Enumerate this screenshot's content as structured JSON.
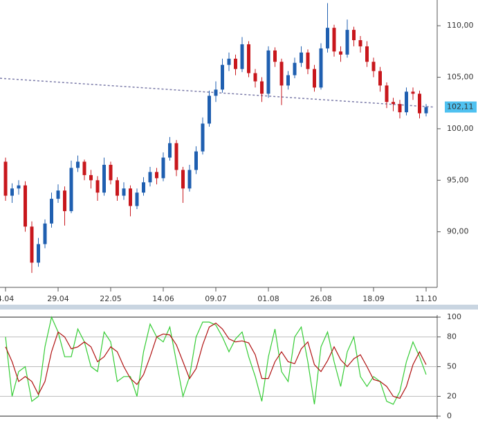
{
  "chart_data": [
    {
      "type": "candlestick",
      "categories": [
        "4.04",
        null,
        null,
        null,
        null,
        null,
        null,
        null,
        "29.04",
        null,
        null,
        null,
        null,
        null,
        null,
        null,
        "22.05",
        null,
        null,
        null,
        null,
        null,
        null,
        null,
        "14.06",
        null,
        null,
        null,
        null,
        null,
        null,
        null,
        "09.07",
        null,
        null,
        null,
        null,
        null,
        null,
        null,
        "01.08",
        null,
        null,
        null,
        null,
        null,
        null,
        null,
        "26.08",
        null,
        null,
        null,
        null,
        null,
        null,
        null,
        "18.09",
        null,
        null,
        null,
        null,
        null,
        null,
        null,
        "11.10"
      ],
      "open": [
        96.8,
        93.5,
        94.2,
        94.5,
        90.5,
        87.0,
        88.8,
        90.8,
        93.2,
        94.0,
        92.0,
        96.2,
        96.8,
        95.5,
        95.0,
        93.8,
        96.5,
        95.0,
        93.5,
        94.2,
        92.5,
        93.8,
        94.8,
        95.8,
        95.2,
        97.2,
        98.6,
        96.0,
        94.2,
        96.0,
        97.8,
        100.5,
        103.2,
        103.8,
        106.2,
        106.8,
        105.8,
        108.2,
        105.4,
        104.6,
        103.4,
        107.6,
        106.5,
        104.2,
        105.2,
        106.4,
        107.4,
        105.8,
        104.0,
        107.8,
        109.8,
        107.5,
        107.2,
        109.6,
        108.6,
        108.0,
        106.5,
        105.6,
        104.2,
        102.6,
        102.4,
        101.6,
        103.6,
        103.4,
        101.5
      ],
      "high": [
        97.2,
        94.7,
        95.0,
        94.9,
        91.0,
        89.4,
        91.2,
        93.8,
        94.6,
        94.4,
        96.9,
        97.4,
        97.0,
        96.0,
        95.4,
        97.2,
        96.8,
        95.3,
        94.8,
        94.5,
        94.2,
        95.3,
        96.3,
        96.2,
        97.7,
        99.2,
        98.9,
        96.3,
        96.5,
        98.3,
        101.1,
        103.7,
        104.6,
        106.8,
        107.4,
        107.2,
        108.9,
        108.5,
        105.8,
        105.0,
        108.0,
        107.9,
        106.8,
        105.6,
        106.9,
        108.0,
        107.7,
        106.2,
        108.3,
        112.2,
        110.1,
        108.0,
        110.6,
        109.9,
        109.0,
        108.5,
        106.9,
        106.0,
        104.5,
        103.0,
        102.8,
        104.0,
        104.0,
        103.7,
        102.4
      ],
      "low": [
        93.0,
        92.8,
        93.6,
        90.0,
        86.0,
        86.6,
        88.4,
        90.4,
        92.8,
        90.6,
        91.8,
        95.8,
        95.0,
        94.2,
        93.0,
        93.5,
        94.6,
        93.0,
        93.1,
        91.5,
        92.2,
        93.5,
        94.4,
        94.6,
        94.9,
        96.9,
        95.4,
        92.8,
        93.9,
        95.6,
        97.5,
        100.2,
        102.6,
        103.5,
        105.6,
        105.2,
        105.5,
        105.0,
        104.0,
        102.6,
        103.0,
        106.0,
        102.3,
        103.8,
        104.9,
        106.0,
        105.3,
        103.6,
        103.8,
        107.4,
        107.0,
        106.5,
        106.9,
        108.0,
        107.4,
        106.0,
        105.0,
        103.6,
        102.0,
        101.7,
        101.0,
        101.3,
        102.8,
        101.0,
        101.2
      ],
      "close": [
        93.5,
        94.2,
        94.5,
        90.5,
        87.0,
        88.8,
        90.8,
        93.2,
        94.0,
        92.0,
        96.2,
        96.8,
        95.5,
        95.0,
        93.8,
        96.5,
        95.0,
        93.5,
        94.2,
        92.5,
        93.8,
        94.8,
        95.8,
        95.2,
        97.2,
        98.6,
        96.0,
        94.2,
        96.0,
        97.8,
        100.5,
        103.2,
        103.8,
        106.2,
        106.8,
        105.8,
        108.2,
        105.4,
        104.6,
        103.4,
        107.6,
        106.5,
        104.2,
        105.2,
        106.4,
        107.4,
        105.8,
        104.0,
        107.8,
        109.8,
        107.5,
        107.2,
        109.6,
        108.6,
        108.0,
        106.5,
        105.6,
        104.2,
        102.6,
        102.4,
        101.6,
        103.6,
        103.4,
        101.5,
        102.1
      ],
      "up_color": "#1f5fb0",
      "down_color": "#c8171c",
      "ylim": [
        84.6,
        112.5
      ],
      "yticks": [
        {
          "value": 90,
          "label": "90,00"
        },
        {
          "value": 95,
          "label": "95,00"
        },
        {
          "value": 100,
          "label": "100,00"
        },
        {
          "value": 105,
          "label": "105,00"
        },
        {
          "value": 110,
          "label": "110,00"
        }
      ],
      "last_price": {
        "value": 102.11,
        "label": "102,11"
      },
      "trend_line": {
        "values": [
          104.9,
          102.1
        ],
        "color": "#7a7aa8"
      }
    },
    {
      "type": "line",
      "series": [
        {
          "color": "#33cc33",
          "values": [
            80,
            20,
            45,
            50,
            15,
            20,
            70,
            100,
            85,
            60,
            60,
            88,
            75,
            50,
            45,
            85,
            75,
            35,
            40,
            40,
            20,
            65,
            93,
            80,
            75,
            90,
            55,
            20,
            40,
            80,
            95,
            95,
            92,
            80,
            65,
            78,
            85,
            60,
            40,
            15,
            60,
            88,
            45,
            35,
            80,
            90,
            55,
            12,
            70,
            85,
            55,
            30,
            65,
            80,
            40,
            30,
            40,
            35,
            15,
            12,
            25,
            55,
            75,
            60,
            42
          ]
        },
        {
          "color": "#b01010",
          "values": [
            70,
            55,
            35,
            40,
            35,
            22,
            35,
            65,
            85,
            80,
            68,
            70,
            75,
            70,
            55,
            60,
            70,
            65,
            50,
            38,
            32,
            42,
            60,
            80,
            83,
            82,
            72,
            55,
            38,
            48,
            72,
            90,
            94,
            88,
            78,
            75,
            76,
            74,
            62,
            38,
            38,
            55,
            65,
            55,
            53,
            68,
            75,
            52,
            45,
            56,
            70,
            57,
            50,
            58,
            62,
            50,
            37,
            35,
            30,
            20,
            18,
            30,
            52,
            65,
            52
          ]
        }
      ],
      "ylim": [
        0,
        100
      ],
      "yticks": [
        0,
        20,
        50,
        80,
        100
      ]
    }
  ]
}
